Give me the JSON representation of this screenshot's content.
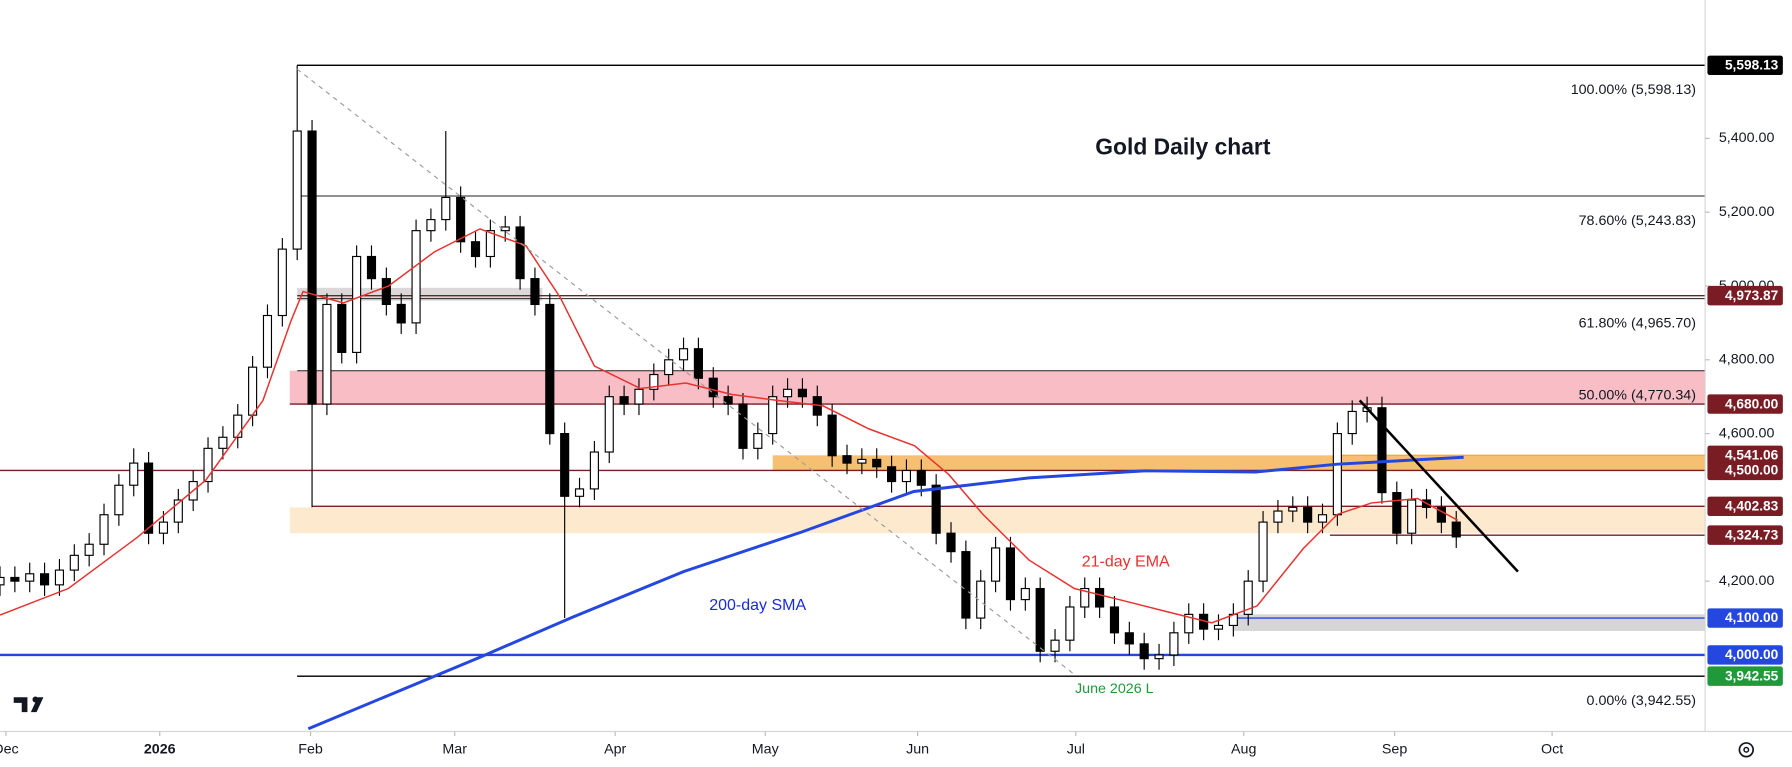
{
  "chart_data": {
    "type": "candlestick",
    "title": "Gold Daily chart",
    "annotations": [
      "21-day EMA",
      "200-day SMA",
      "June 2026 L"
    ],
    "xlim": [
      0,
      229.5
    ],
    "ylim": [
      3792.5,
      5775
    ],
    "xticks": [
      {
        "value": 0.8,
        "label": "Dec"
      },
      {
        "value": 21.5,
        "label": "2026"
      },
      {
        "value": 41.8,
        "label": "Feb"
      },
      {
        "value": 61.2,
        "label": "Mar"
      },
      {
        "value": 82.8,
        "label": "Apr"
      },
      {
        "value": 103,
        "label": "May"
      },
      {
        "value": 123.5,
        "label": "Jun"
      },
      {
        "value": 144.8,
        "label": "Jul"
      },
      {
        "value": 167.4,
        "label": "Aug"
      },
      {
        "value": 187.7,
        "label": "Sep"
      },
      {
        "value": 208.9,
        "label": "Oct"
      }
    ],
    "yticks": [
      {
        "value": 4200,
        "label": "4,200.00"
      },
      {
        "value": 4600,
        "label": "4,600.00"
      },
      {
        "value": 4800,
        "label": "4,800.00"
      },
      {
        "value": 5000,
        "label": "5,000.00"
      },
      {
        "value": 5200,
        "label": "5,200.00"
      },
      {
        "value": 5400,
        "label": "5,400.00"
      }
    ],
    "up_color": "#ffffff",
    "down_color": "#000000",
    "x": [
      0,
      2,
      4,
      6,
      8,
      10,
      12,
      14,
      16,
      18,
      20,
      22,
      24,
      26,
      28,
      30,
      32,
      34,
      36,
      38,
      40,
      42,
      44,
      46,
      48,
      50,
      52,
      54,
      56,
      58,
      60,
      62,
      64,
      66,
      68,
      70,
      72,
      74,
      76,
      78,
      80,
      82,
      84,
      86,
      88,
      90,
      92,
      94,
      96,
      98,
      100,
      102,
      104,
      106,
      108,
      110,
      112,
      114,
      116,
      118,
      120,
      122,
      124,
      126,
      128,
      130,
      132,
      134,
      136,
      138,
      140,
      142,
      144,
      146,
      148,
      150,
      152,
      154,
      156,
      158,
      160,
      162,
      164,
      166,
      168,
      170,
      172,
      174,
      176,
      178,
      180,
      182,
      184,
      186,
      188,
      190,
      192,
      194,
      196
    ],
    "open": [
      4190,
      4210,
      4200,
      4220,
      4190,
      4230,
      4270,
      4300,
      4380,
      4460,
      4520,
      4330,
      4360,
      4420,
      4470,
      4560,
      4590,
      4650,
      4780,
      4920,
      5100,
      5420,
      4680,
      4950,
      4820,
      5080,
      5020,
      4950,
      4900,
      5150,
      5180,
      5240,
      5120,
      5080,
      5150,
      5160,
      5020,
      4950,
      4600,
      4430,
      4450,
      4550,
      4700,
      4680,
      4720,
      4760,
      4800,
      4830,
      4750,
      4700,
      4680,
      4560,
      4600,
      4700,
      4720,
      4700,
      4650,
      4540,
      4520,
      4530,
      4510,
      4470,
      4500,
      4460,
      4330,
      4280,
      4100,
      4200,
      4290,
      4150,
      4180,
      4010,
      4040,
      4130,
      4180,
      4130,
      4060,
      4030,
      3990,
      4000,
      4060,
      4110,
      4070,
      4080,
      4110,
      4200,
      4360,
      4390,
      4400,
      4360,
      4380,
      4600,
      4660,
      4670,
      4440,
      4330,
      4420,
      4400,
      4360
    ],
    "high": [
      4240,
      4240,
      4250,
      4250,
      4260,
      4300,
      4330,
      4410,
      4490,
      4560,
      4550,
      4390,
      4450,
      4500,
      4590,
      4620,
      4680,
      4810,
      4950,
      5130,
      5598,
      5450,
      4980,
      4980,
      5110,
      5110,
      5050,
      4980,
      5180,
      5210,
      5420,
      5270,
      5150,
      5180,
      5190,
      5190,
      5050,
      4980,
      4630,
      4480,
      4580,
      4730,
      4730,
      4750,
      4790,
      4830,
      4860,
      4860,
      4780,
      4730,
      4710,
      4630,
      4730,
      4750,
      4750,
      4730,
      4680,
      4570,
      4560,
      4560,
      4540,
      4530,
      4530,
      4490,
      4360,
      4310,
      4230,
      4320,
      4320,
      4210,
      4210,
      4070,
      4160,
      4210,
      4210,
      4160,
      4090,
      4060,
      4030,
      4090,
      4140,
      4140,
      4110,
      4140,
      4230,
      4390,
      4420,
      4430,
      4430,
      4410,
      4630,
      4690,
      4700,
      4700,
      4470,
      4450,
      4450,
      4430,
      4390
    ],
    "low": [
      4160,
      4170,
      4170,
      4160,
      4160,
      4200,
      4240,
      4270,
      4350,
      4430,
      4300,
      4300,
      4330,
      4390,
      4440,
      4530,
      4560,
      4620,
      4750,
      4890,
      5070,
      4400,
      4650,
      4790,
      4790,
      4990,
      4920,
      4870,
      4870,
      5120,
      5150,
      5090,
      5050,
      5050,
      5120,
      4990,
      4920,
      4570,
      4100,
      4400,
      4420,
      4520,
      4650,
      4650,
      4690,
      4730,
      4770,
      4720,
      4670,
      4650,
      4530,
      4530,
      4570,
      4670,
      4670,
      4620,
      4510,
      4490,
      4490,
      4480,
      4440,
      4440,
      4430,
      4300,
      4250,
      4070,
      4070,
      4170,
      4120,
      4120,
      3980,
      3980,
      4010,
      4100,
      4100,
      4030,
      4000,
      3960,
      3960,
      3970,
      4030,
      4040,
      4040,
      4050,
      4080,
      4170,
      4330,
      4360,
      4330,
      4330,
      4350,
      4570,
      4630,
      4410,
      4300,
      4300,
      4370,
      4330,
      4290
    ],
    "close": [
      4210,
      4200,
      4220,
      4190,
      4230,
      4270,
      4300,
      4380,
      4460,
      4520,
      4330,
      4360,
      4420,
      4470,
      4560,
      4590,
      4650,
      4780,
      4920,
      5100,
      5420,
      4680,
      4950,
      4820,
      5080,
      5020,
      4950,
      4900,
      5150,
      5180,
      5240,
      5120,
      5080,
      5150,
      5160,
      5020,
      4950,
      4600,
      4430,
      4450,
      4550,
      4700,
      4680,
      4720,
      4760,
      4800,
      4830,
      4750,
      4700,
      4680,
      4560,
      4600,
      4700,
      4720,
      4700,
      4650,
      4540,
      4520,
      4530,
      4510,
      4470,
      4500,
      4460,
      4330,
      4280,
      4100,
      4200,
      4290,
      4150,
      4180,
      4010,
      4040,
      4130,
      4180,
      4130,
      4060,
      4030,
      3990,
      4000,
      4060,
      4110,
      4070,
      4080,
      4110,
      4200,
      4360,
      4390,
      4400,
      4360,
      4380,
      4600,
      4660,
      4670,
      4440,
      4330,
      4420,
      4400,
      4360,
      4320
    ],
    "series": [
      {
        "color": "#e8322f",
        "x": [
          0,
          9.2,
          18.5,
          27.7,
          35.4,
          39.2,
          40.8,
          46.2,
          52.3,
          58.5,
          64.6,
          70.8,
          75.4,
          80,
          86.2,
          92.3,
          98.5,
          104.6,
          110.8,
          116.9,
          123.1,
          127.7,
          132.3,
          138.5,
          144.6,
          150.8,
          156.9,
          163.1,
          169.2,
          175.4,
          180,
          184.6,
          190.8,
          196.2
        ],
        "values": [
          4108,
          4180,
          4319,
          4474,
          4690,
          4907,
          4985,
          4954,
          5000,
          5093,
          5155,
          5109,
          4969,
          4783,
          4722,
          4737,
          4706,
          4690,
          4675,
          4613,
          4567,
          4489,
          4381,
          4257,
          4180,
          4149,
          4118,
          4087,
          4133,
          4288,
          4381,
          4412,
          4424,
          4365
        ]
      },
      {
        "color": "#2447e0",
        "x": [
          41.5,
          64.6,
          77,
          92,
          108,
          123,
          138.5,
          154,
          169,
          180,
          197
        ],
        "values": [
          3800,
          3994,
          4102,
          4226,
          4334,
          4443,
          4480,
          4499,
          4496,
          4517,
          4536
        ]
      }
    ],
    "fib": [
      {
        "value": 5598.13,
        "label": "100.00% (5,598.13)"
      },
      {
        "value": 5243.83,
        "label": "78.60% (5,243.83)"
      },
      {
        "value": 4965.7,
        "label": "61.80% (4,965.70)"
      },
      {
        "value": 4770.34,
        "label": "50.00% (4,770.34)"
      },
      {
        "value": 3942.55,
        "label": "0.00% (3,942.55)"
      }
    ],
    "fib_from": 40,
    "levels": [
      {
        "value": 5598.13,
        "label": "5,598.13",
        "color": "#000000",
        "line_color": "#000000",
        "from": 40
      },
      {
        "value": 4973.87,
        "label": "4,973.87",
        "color": "#7a1c24",
        "line_color": "#7a1c24",
        "from": 40
      },
      {
        "value": 4680.0,
        "label": "4,680.00",
        "color": "#7a1c24",
        "line_color": "#7a1c24",
        "from": 39
      },
      {
        "value": 4541.06,
        "label": "4,541.06",
        "color": "#7a1c24",
        "line_color": "#f5a742",
        "from": 180
      },
      {
        "value": 4500.0,
        "label": "4,500.00",
        "color": "#7a1c24",
        "line_color": "#7a1c24",
        "from": 0
      },
      {
        "value": 4402.83,
        "label": "4,402.83",
        "color": "#7a1c24",
        "line_color": "#7a1c24",
        "from": 42
      },
      {
        "value": 4324.73,
        "label": "4,324.73",
        "color": "#7a1c24",
        "line_color": "#7a1c24",
        "from": 179
      },
      {
        "value": 4100.0,
        "label": "4,100.00",
        "color": "#2447e0",
        "line_color": "#2447e0",
        "from": 166
      },
      {
        "value": 4000.0,
        "label": "4,000.00",
        "color": "#2447e0",
        "line_color": "#2447e0",
        "from": 0
      },
      {
        "value": 3942.55,
        "label": "3,942.55",
        "color": "#1f9a3a",
        "line_color": "#000000",
        "from": 40
      }
    ],
    "zones": [
      {
        "low": 4680,
        "high": 4770.34,
        "from": 39,
        "to": 229.5,
        "color": "#f7b2bb"
      },
      {
        "low": 4330,
        "high": 4400,
        "from": 39,
        "to": 229.5,
        "color": "#fde6c6"
      },
      {
        "low": 4500,
        "high": 4541.06,
        "from": 104,
        "to": 229.5,
        "color": "#f6b459"
      },
      {
        "low": 4065,
        "high": 4110,
        "from": 166,
        "to": 229.5,
        "color": "#cfcfcf"
      },
      {
        "low": 4960,
        "high": 4995,
        "from": 40,
        "to": 73,
        "color": "#d2d2d2"
      }
    ],
    "trendlines": [
      {
        "x": [
          183,
          204.3
        ],
        "values": [
          4690,
          4226
        ],
        "color": "#000000",
        "dash": false
      },
      {
        "x": [
          40,
          144.6
        ],
        "values": [
          5588,
          3947
        ],
        "color": "#9a9a9a",
        "dash": true
      }
    ]
  }
}
